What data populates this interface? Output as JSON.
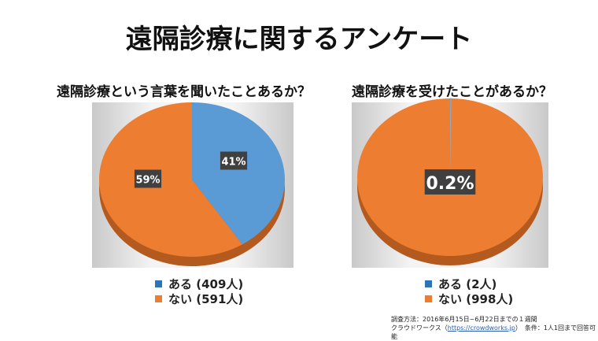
{
  "title": "遠隔診療に関するアンケート",
  "notes": {
    "line1": "調査方法：2016年6月15日~6月22日までの１週間",
    "line2a": "クラウドワークス（",
    "link": "https://crowdworks.jp",
    "line2b": "）　条件：1人1回まで回答可能"
  },
  "chart_data": [
    {
      "type": "pie",
      "title": "遠隔診療という言葉を聞いたことあるか？",
      "categories": [
        "ある (409人)",
        "ない (591人)"
      ],
      "values": [
        409,
        591
      ],
      "labels": [
        "41%",
        "59%"
      ],
      "colors": [
        "#5b9bd5",
        "#ed7d31"
      ]
    },
    {
      "type": "pie",
      "title": "遠隔診療を受けたことがあるか？",
      "categories": [
        "ある (2人)",
        "ない (998人)"
      ],
      "values": [
        2,
        998
      ],
      "labels": [
        "0.2%"
      ],
      "colors": [
        "#5b9bd5",
        "#ed7d31"
      ]
    }
  ]
}
